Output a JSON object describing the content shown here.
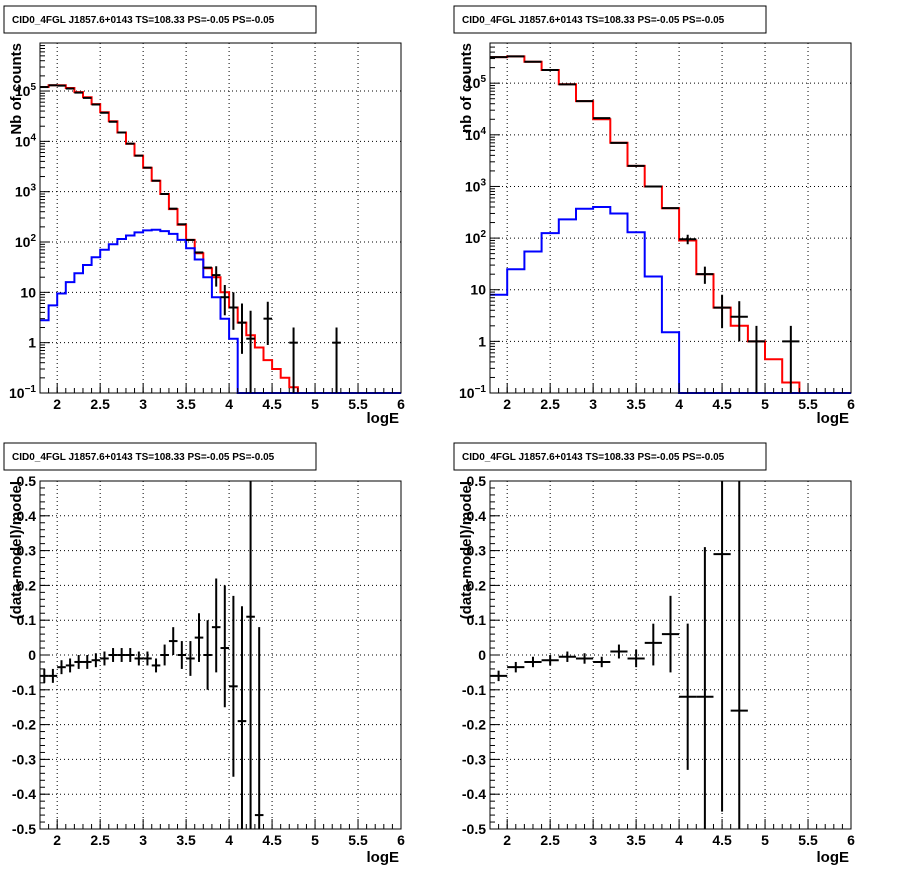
{
  "panels": [
    {
      "title": "CID0_4FGL J1857.6+0143 TS=108.33 PS=-0.05 PS=-0.05",
      "xlabel": "logE",
      "ylabel": "Nb of counts",
      "chart_data": {
        "type": "line",
        "xlim": [
          1.8,
          6.0
        ],
        "ylim": [
          0.1,
          900000
        ],
        "yscale": "log",
        "grid": true,
        "x_ticks": [
          "2",
          "2.5",
          "3",
          "3.5",
          "4",
          "4.5",
          "5",
          "5.5",
          "6"
        ],
        "y_ticks": [
          {
            "value": 0.1,
            "label": "10",
            "exp": "−1"
          },
          {
            "value": 1,
            "label": "1",
            "exp": ""
          },
          {
            "value": 10,
            "label": "10",
            "exp": ""
          },
          {
            "value": 100,
            "label": "10",
            "exp": "2"
          },
          {
            "value": 1000,
            "label": "10",
            "exp": "3"
          },
          {
            "value": 10000,
            "label": "10",
            "exp": "4"
          },
          {
            "value": 100000,
            "label": "10",
            "exp": "5"
          }
        ],
        "bin_edges": [
          1.8,
          1.9,
          2.0,
          2.1,
          2.2,
          2.3,
          2.4,
          2.5,
          2.6,
          2.7,
          2.8,
          2.9,
          3.0,
          3.1,
          3.2,
          3.3,
          3.4,
          3.5,
          3.6,
          3.7,
          3.8,
          3.9,
          4.0,
          4.1,
          4.2,
          4.3,
          4.4,
          4.5,
          4.6,
          4.7,
          4.8,
          4.9,
          5.0,
          5.1,
          5.2,
          5.3,
          5.4,
          5.5,
          5.6,
          5.7,
          5.8,
          5.9,
          6.0
        ],
        "series": [
          {
            "color": "#ff0000",
            "values": [
              120000,
              130000,
              130000,
              115000,
              95000,
              75000,
              55000,
              38000,
              25000,
              15000,
              9000,
              5200,
              3000,
              1650,
              900,
              450,
              220,
              110,
              60,
              30,
              20,
              10,
              5.0,
              2.5,
              1.4,
              0.8,
              0.45,
              0.3,
              0.2,
              0.13,
              0.1,
              0.1,
              0.1,
              0.1,
              0.1,
              0.1,
              0.1,
              0.1,
              0.1,
              0.1,
              0.1,
              0.1
            ]
          },
          {
            "color": "#0000ff",
            "values": [
              2.8,
              5.5,
              9.5,
              16,
              24,
              35,
              50,
              70,
              90,
              115,
              135,
              155,
              170,
              175,
              165,
              145,
              110,
              75,
              45,
              20,
              8.0,
              3.0,
              1.2,
              0.1,
              0.1,
              0.1,
              0.1,
              0.1,
              0.1,
              0.1,
              0.1,
              0.1,
              0.1,
              0.1,
              0.1,
              0.1,
              0.1,
              0.1,
              0.1,
              0.1,
              0.1,
              0.1
            ]
          }
        ],
        "points": [
          {
            "x": 1.85,
            "y": 120000
          },
          {
            "x": 1.95,
            "y": 130000
          },
          {
            "x": 2.05,
            "y": 128000
          },
          {
            "x": 2.15,
            "y": 112000
          },
          {
            "x": 2.25,
            "y": 93000
          },
          {
            "x": 2.35,
            "y": 73000
          },
          {
            "x": 2.45,
            "y": 54000
          },
          {
            "x": 2.55,
            "y": 37000
          },
          {
            "x": 2.65,
            "y": 24500
          },
          {
            "x": 2.75,
            "y": 15000
          },
          {
            "x": 2.85,
            "y": 9000
          },
          {
            "x": 2.95,
            "y": 5200
          },
          {
            "x": 3.05,
            "y": 3000
          },
          {
            "x": 3.15,
            "y": 1650
          },
          {
            "x": 3.25,
            "y": 900
          },
          {
            "x": 3.35,
            "y": 460
          },
          {
            "x": 3.45,
            "y": 225
          },
          {
            "x": 3.55,
            "y": 110
          },
          {
            "x": 3.65,
            "y": 62
          },
          {
            "x": 3.75,
            "y": 31
          },
          {
            "x": 3.85,
            "y": 22,
            "lo": 13,
            "hi": 33
          },
          {
            "x": 3.95,
            "y": 8,
            "lo": 3.5,
            "hi": 14
          },
          {
            "x": 4.05,
            "y": 5,
            "lo": 1.8,
            "hi": 10
          },
          {
            "x": 4.15,
            "y": 2.5,
            "lo": 0.6,
            "hi": 6
          },
          {
            "x": 4.25,
            "y": 1.2,
            "lo": 0.1,
            "hi": 4.3
          },
          {
            "x": 4.45,
            "y": 3.0,
            "lo": 0.9,
            "hi": 6.5
          },
          {
            "x": 4.75,
            "y": 1.0,
            "lo": 0.1,
            "hi": 2.0
          },
          {
            "x": 5.25,
            "y": 1.0,
            "lo": 0.1,
            "hi": 2.0
          }
        ]
      }
    },
    {
      "title": "CID0_4FGL J1857.6+0143 TS=108.33 PS=-0.05 PS=-0.05",
      "xlabel": "logE",
      "ylabel": "nb of counts",
      "chart_data": {
        "type": "line",
        "xlim": [
          1.8,
          6.0
        ],
        "ylim": [
          0.1,
          600000
        ],
        "yscale": "log",
        "grid": true,
        "x_ticks": [
          "2",
          "2.5",
          "3",
          "3.5",
          "4",
          "4.5",
          "5",
          "5.5",
          "6"
        ],
        "y_ticks": [
          {
            "value": 0.1,
            "label": "10",
            "exp": "−1"
          },
          {
            "value": 1,
            "label": "1",
            "exp": ""
          },
          {
            "value": 10,
            "label": "10",
            "exp": ""
          },
          {
            "value": 100,
            "label": "10",
            "exp": "2"
          },
          {
            "value": 1000,
            "label": "10",
            "exp": "3"
          },
          {
            "value": 10000,
            "label": "10",
            "exp": "4"
          },
          {
            "value": 100000,
            "label": "10",
            "exp": "5"
          }
        ],
        "bin_edges": [
          1.8,
          2.0,
          2.2,
          2.4,
          2.6,
          2.8,
          3.0,
          3.2,
          3.4,
          3.6,
          3.8,
          4.0,
          4.2,
          4.4,
          4.6,
          4.8,
          5.0,
          5.2,
          5.4,
          5.6,
          5.8,
          6.0
        ],
        "series": [
          {
            "color": "#ff0000",
            "values": [
              320000,
              330000,
              260000,
              180000,
              95000,
              45000,
              20000,
              7000,
              2500,
              1000,
              380,
              90,
              20,
              4.5,
              2.0,
              1.0,
              0.45,
              0.16,
              0.1,
              0.1,
              0.1
            ]
          },
          {
            "color": "#0000ff",
            "values": [
              8,
              25,
              55,
              125,
              230,
              370,
              400,
              300,
              130,
              18,
              1.5,
              0.1,
              0.1,
              0.1,
              0.1,
              0.1,
              0.1,
              0.1,
              0.1,
              0.1,
              0.1
            ]
          }
        ],
        "points": [
          {
            "x": 1.9,
            "y": 320000
          },
          {
            "x": 2.1,
            "y": 330000
          },
          {
            "x": 2.3,
            "y": 260000
          },
          {
            "x": 2.5,
            "y": 180000
          },
          {
            "x": 2.7,
            "y": 95000
          },
          {
            "x": 2.9,
            "y": 45000
          },
          {
            "x": 3.1,
            "y": 21000
          },
          {
            "x": 3.3,
            "y": 7000
          },
          {
            "x": 3.5,
            "y": 2500
          },
          {
            "x": 3.7,
            "y": 1000
          },
          {
            "x": 3.9,
            "y": 380
          },
          {
            "x": 4.1,
            "y": 95,
            "lo": 76,
            "hi": 116
          },
          {
            "x": 4.3,
            "y": 20,
            "lo": 13,
            "hi": 28
          },
          {
            "x": 4.5,
            "y": 4.5,
            "lo": 1.8,
            "hi": 8
          },
          {
            "x": 4.7,
            "y": 3.0,
            "lo": 1.0,
            "hi": 6
          },
          {
            "x": 4.9,
            "y": 1.0,
            "lo": 0.1,
            "hi": 2.0
          },
          {
            "x": 5.3,
            "y": 1.0,
            "lo": 0.1,
            "hi": 2.0
          }
        ]
      }
    },
    {
      "title": "CID0_4FGL J1857.6+0143 TS=108.33 PS=-0.05 PS=-0.05",
      "xlabel": "logE",
      "ylabel": "(data-model)/model",
      "chart_data": {
        "type": "scatter",
        "xlim": [
          1.8,
          6.0
        ],
        "ylim": [
          -0.5,
          0.5
        ],
        "yscale": "linear",
        "grid": true,
        "x_ticks": [
          "2",
          "2.5",
          "3",
          "3.5",
          "4",
          "4.5",
          "5",
          "5.5",
          "6"
        ],
        "y_ticks": [
          "-0.5",
          "-0.4",
          "-0.3",
          "-0.2",
          "-0.1",
          "0",
          "0.1",
          "0.2",
          "0.3",
          "0.4",
          "0.5"
        ],
        "points": [
          {
            "x": 1.85,
            "y": -0.06,
            "lo": -0.08,
            "hi": -0.04
          },
          {
            "x": 1.95,
            "y": -0.06,
            "lo": -0.08,
            "hi": -0.04
          },
          {
            "x": 2.05,
            "y": -0.035,
            "lo": -0.055,
            "hi": -0.015
          },
          {
            "x": 2.15,
            "y": -0.03,
            "lo": -0.05,
            "hi": -0.01
          },
          {
            "x": 2.25,
            "y": -0.02,
            "lo": -0.04,
            "hi": 0.0
          },
          {
            "x": 2.35,
            "y": -0.02,
            "lo": -0.04,
            "hi": 0.0
          },
          {
            "x": 2.45,
            "y": -0.015,
            "lo": -0.035,
            "hi": 0.005
          },
          {
            "x": 2.55,
            "y": -0.01,
            "lo": -0.03,
            "hi": 0.01
          },
          {
            "x": 2.65,
            "y": 0.0,
            "lo": -0.02,
            "hi": 0.02
          },
          {
            "x": 2.75,
            "y": 0.0,
            "lo": -0.02,
            "hi": 0.02
          },
          {
            "x": 2.85,
            "y": 0.0,
            "lo": -0.02,
            "hi": 0.02
          },
          {
            "x": 2.95,
            "y": -0.01,
            "lo": -0.03,
            "hi": 0.01
          },
          {
            "x": 3.05,
            "y": -0.01,
            "lo": -0.03,
            "hi": 0.01
          },
          {
            "x": 3.15,
            "y": -0.03,
            "lo": -0.05,
            "hi": -0.01
          },
          {
            "x": 3.25,
            "y": 0.0,
            "lo": -0.03,
            "hi": 0.03
          },
          {
            "x": 3.35,
            "y": 0.04,
            "lo": 0.0,
            "hi": 0.08
          },
          {
            "x": 3.45,
            "y": 0.0,
            "lo": -0.04,
            "hi": 0.04
          },
          {
            "x": 3.55,
            "y": -0.01,
            "lo": -0.06,
            "hi": 0.04
          },
          {
            "x": 3.65,
            "y": 0.05,
            "lo": -0.02,
            "hi": 0.12
          },
          {
            "x": 3.75,
            "y": 0.0,
            "lo": -0.1,
            "hi": 0.1
          },
          {
            "x": 3.85,
            "y": 0.08,
            "lo": -0.05,
            "hi": 0.22
          },
          {
            "x": 3.95,
            "y": 0.02,
            "lo": -0.15,
            "hi": 0.2
          },
          {
            "x": 4.05,
            "y": -0.09,
            "lo": -0.35,
            "hi": 0.17
          },
          {
            "x": 4.15,
            "y": -0.19,
            "lo": -0.5,
            "hi": 0.14
          },
          {
            "x": 4.25,
            "y": 0.11,
            "lo": -0.5,
            "hi": 0.5
          },
          {
            "x": 4.35,
            "y": -0.46,
            "lo": -0.5,
            "hi": 0.08
          }
        ]
      }
    },
    {
      "title": "CID0_4FGL J1857.6+0143 TS=108.33 PS=-0.05 PS=-0.05",
      "xlabel": "logE",
      "ylabel": "(data-model)/model",
      "chart_data": {
        "type": "scatter",
        "xlim": [
          1.8,
          6.0
        ],
        "ylim": [
          -0.5,
          0.5
        ],
        "yscale": "linear",
        "grid": true,
        "x_ticks": [
          "2",
          "2.5",
          "3",
          "3.5",
          "4",
          "4.5",
          "5",
          "5.5",
          "6"
        ],
        "y_ticks": [
          "-0.5",
          "-0.4",
          "-0.3",
          "-0.2",
          "-0.1",
          "0",
          "0.1",
          "0.2",
          "0.3",
          "0.4",
          "0.5"
        ],
        "points": [
          {
            "x": 1.9,
            "y": -0.06,
            "lo": -0.075,
            "hi": -0.045
          },
          {
            "x": 2.1,
            "y": -0.035,
            "lo": -0.05,
            "hi": -0.02
          },
          {
            "x": 2.3,
            "y": -0.02,
            "lo": -0.035,
            "hi": -0.005
          },
          {
            "x": 2.5,
            "y": -0.015,
            "lo": -0.03,
            "hi": 0.0
          },
          {
            "x": 2.7,
            "y": -0.005,
            "lo": -0.02,
            "hi": 0.01
          },
          {
            "x": 2.9,
            "y": -0.01,
            "lo": -0.025,
            "hi": 0.005
          },
          {
            "x": 3.1,
            "y": -0.02,
            "lo": -0.035,
            "hi": -0.005
          },
          {
            "x": 3.3,
            "y": 0.01,
            "lo": -0.01,
            "hi": 0.03
          },
          {
            "x": 3.5,
            "y": -0.01,
            "lo": -0.035,
            "hi": 0.015
          },
          {
            "x": 3.7,
            "y": 0.035,
            "lo": -0.03,
            "hi": 0.09
          },
          {
            "x": 3.9,
            "y": 0.06,
            "lo": -0.05,
            "hi": 0.17
          },
          {
            "x": 4.1,
            "y": -0.12,
            "lo": -0.33,
            "hi": 0.09
          },
          {
            "x": 4.3,
            "y": -0.12,
            "lo": -0.5,
            "hi": 0.31
          },
          {
            "x": 4.5,
            "y": 0.29,
            "lo": -0.45,
            "hi": 0.5
          },
          {
            "x": 4.7,
            "y": -0.16,
            "lo": -0.5,
            "hi": 0.5
          }
        ]
      }
    }
  ]
}
